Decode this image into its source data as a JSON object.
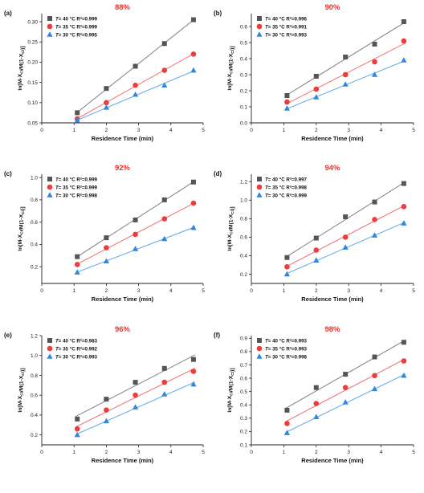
{
  "chart_data": [
    {
      "type": "scatter",
      "panel_label": "(a)",
      "title": "88%",
      "xlabel": "Residence Time (min)",
      "ylabel": "ln[M-X_Cl/M(1-X_Cl)]",
      "xlim": [
        0,
        5
      ],
      "ylim": [
        0.05,
        0.32
      ],
      "xticks": [
        0,
        1,
        2,
        3,
        4,
        5
      ],
      "yticks": [
        0.05,
        0.1,
        0.15,
        0.2,
        0.25,
        0.3
      ],
      "ytick_labels": [
        "0.05",
        "0.10",
        "0.15",
        "0.20",
        "0.25",
        "0.30"
      ],
      "x": [
        1.1,
        2.0,
        2.9,
        3.8,
        4.7
      ],
      "series": [
        {
          "name": "T= 40 °C R²=0.999",
          "values": [
            0.075,
            0.135,
            0.19,
            0.246,
            0.305
          ]
        },
        {
          "name": "T= 35 °C R²=0.999",
          "values": [
            0.06,
            0.1,
            0.143,
            0.18,
            0.22
          ]
        },
        {
          "name": "T= 30 °C R²=0.995",
          "values": [
            0.056,
            0.088,
            0.12,
            0.143,
            0.18
          ]
        }
      ],
      "legend": "top-left"
    },
    {
      "type": "scatter",
      "panel_label": "(b)",
      "title": "90%",
      "xlabel": "Residence Time (min)",
      "ylabel": "ln[M-X_Cl/M(1-X_Cl)]",
      "xlim": [
        0,
        5
      ],
      "ylim": [
        0.0,
        0.68
      ],
      "xticks": [
        0,
        1,
        2,
        3,
        4,
        5
      ],
      "yticks": [
        0.0,
        0.1,
        0.2,
        0.3,
        0.4,
        0.5,
        0.6
      ],
      "ytick_labels": [
        "0.0",
        "0.1",
        "0.2",
        "0.3",
        "0.4",
        "0.5",
        "0.6"
      ],
      "x": [
        1.1,
        2.0,
        2.9,
        3.8,
        4.7
      ],
      "series": [
        {
          "name": "T= 40 °C R²=0.996",
          "values": [
            0.17,
            0.29,
            0.41,
            0.49,
            0.63
          ]
        },
        {
          "name": "T= 35 °C R²=0.991",
          "values": [
            0.13,
            0.21,
            0.3,
            0.38,
            0.51
          ]
        },
        {
          "name": "T= 30 °C R²=0.993",
          "values": [
            0.09,
            0.16,
            0.24,
            0.3,
            0.39
          ]
        }
      ],
      "legend": "top-left"
    },
    {
      "type": "scatter",
      "panel_label": "(c)",
      "title": "92%",
      "xlabel": "Residence Time (min)",
      "ylabel": "ln[M-X_Cl/M(1-X_Cl)]",
      "xlim": [
        0,
        5
      ],
      "ylim": [
        0.05,
        1.03
      ],
      "xticks": [
        0,
        1,
        2,
        3,
        4,
        5
      ],
      "yticks": [
        0.2,
        0.4,
        0.6,
        0.8,
        1.0
      ],
      "ytick_labels": [
        "0.2",
        "0.4",
        "0.6",
        "0.8",
        "1.0"
      ],
      "x": [
        1.1,
        2.0,
        2.9,
        3.8,
        4.7
      ],
      "series": [
        {
          "name": "T= 40 °C R²=0.999",
          "values": [
            0.29,
            0.46,
            0.62,
            0.8,
            0.96
          ]
        },
        {
          "name": "T= 35 °C R²=0.999",
          "values": [
            0.22,
            0.37,
            0.49,
            0.63,
            0.77
          ]
        },
        {
          "name": "T= 30 °C R²=0.998",
          "values": [
            0.15,
            0.25,
            0.36,
            0.45,
            0.55
          ]
        }
      ],
      "legend": "top-left"
    },
    {
      "type": "scatter",
      "panel_label": "(d)",
      "title": "94%",
      "xlabel": "Residence Time (min)",
      "ylabel": "ln[M-X_Cl/M(1-X_Cl)]",
      "xlim": [
        0,
        5
      ],
      "ylim": [
        0.1,
        1.28
      ],
      "xticks": [
        0,
        1,
        2,
        3,
        4,
        5
      ],
      "yticks": [
        0.2,
        0.4,
        0.6,
        0.8,
        1.0,
        1.2
      ],
      "ytick_labels": [
        "0.2",
        "0.4",
        "0.6",
        "0.8",
        "1.0",
        "1.2"
      ],
      "x": [
        1.1,
        2.0,
        2.9,
        3.8,
        4.7
      ],
      "series": [
        {
          "name": "T= 40 °C R²=0.997",
          "values": [
            0.38,
            0.59,
            0.82,
            0.98,
            1.18
          ]
        },
        {
          "name": "T= 35 °C R²=0.998",
          "values": [
            0.28,
            0.46,
            0.6,
            0.79,
            0.93
          ]
        },
        {
          "name": "T= 30 °C R²=0.999",
          "values": [
            0.2,
            0.35,
            0.49,
            0.62,
            0.75
          ]
        }
      ],
      "legend": "top-left"
    },
    {
      "type": "scatter",
      "panel_label": "(e)",
      "title": "96%",
      "xlabel": "Residence Time (min)",
      "ylabel": "ln[M-X_Cl/M(1-X_Cl)]",
      "xlim": [
        0,
        5
      ],
      "ylim": [
        0.1,
        1.2
      ],
      "xticks": [
        0,
        1,
        2,
        3,
        4,
        5
      ],
      "yticks": [
        0.2,
        0.4,
        0.6,
        0.8,
        1.0,
        1.2
      ],
      "ytick_labels": [
        "0.2",
        "0.4",
        "0.6",
        "0.8",
        "1.0",
        "1.2"
      ],
      "x": [
        1.1,
        2.0,
        2.9,
        3.8,
        4.7
      ],
      "series": [
        {
          "name": "T= 40 °C R²=0.983",
          "values": [
            0.36,
            0.56,
            0.73,
            0.87,
            0.96
          ]
        },
        {
          "name": "T= 35 °C R²=0.992",
          "values": [
            0.26,
            0.45,
            0.6,
            0.73,
            0.84
          ]
        },
        {
          "name": "T= 30 °C R²=0.993",
          "values": [
            0.2,
            0.34,
            0.48,
            0.61,
            0.71
          ]
        }
      ],
      "legend": "top-left"
    },
    {
      "type": "scatter",
      "panel_label": "(f)",
      "title": "98%",
      "xlabel": "Residence Time (min)",
      "ylabel": "ln[M-X_Cl/M(1-X_Cl)]",
      "xlim": [
        0,
        5
      ],
      "ylim": [
        0.1,
        0.92
      ],
      "xticks": [
        0,
        1,
        2,
        3,
        4,
        5
      ],
      "yticks": [
        0.1,
        0.2,
        0.3,
        0.4,
        0.5,
        0.6,
        0.7,
        0.8,
        0.9
      ],
      "ytick_labels": [
        "0.1",
        "0.2",
        "0.3",
        "0.4",
        "0.5",
        "0.6",
        "0.7",
        "0.8",
        "0.9"
      ],
      "x": [
        1.1,
        2.0,
        2.9,
        3.8,
        4.7
      ],
      "series": [
        {
          "name": "T= 40 °C R²=0.993",
          "values": [
            0.36,
            0.53,
            0.63,
            0.76,
            0.87
          ]
        },
        {
          "name": "T= 35 °C R²=0.993",
          "values": [
            0.26,
            0.41,
            0.53,
            0.62,
            0.73
          ]
        },
        {
          "name": "T= 30 °C R²=0.998",
          "values": [
            0.19,
            0.31,
            0.42,
            0.52,
            0.62
          ]
        }
      ],
      "legend": "top-left"
    }
  ],
  "style": {
    "series_colors": [
      "#555555",
      "#ef3b3b",
      "#2e86de"
    ],
    "line_colors": [
      "#8a8a8a",
      "#f07a7a",
      "#6aaee8"
    ],
    "series_markers": [
      "square",
      "circle",
      "triangle"
    ],
    "title_color": "#e8312f"
  }
}
